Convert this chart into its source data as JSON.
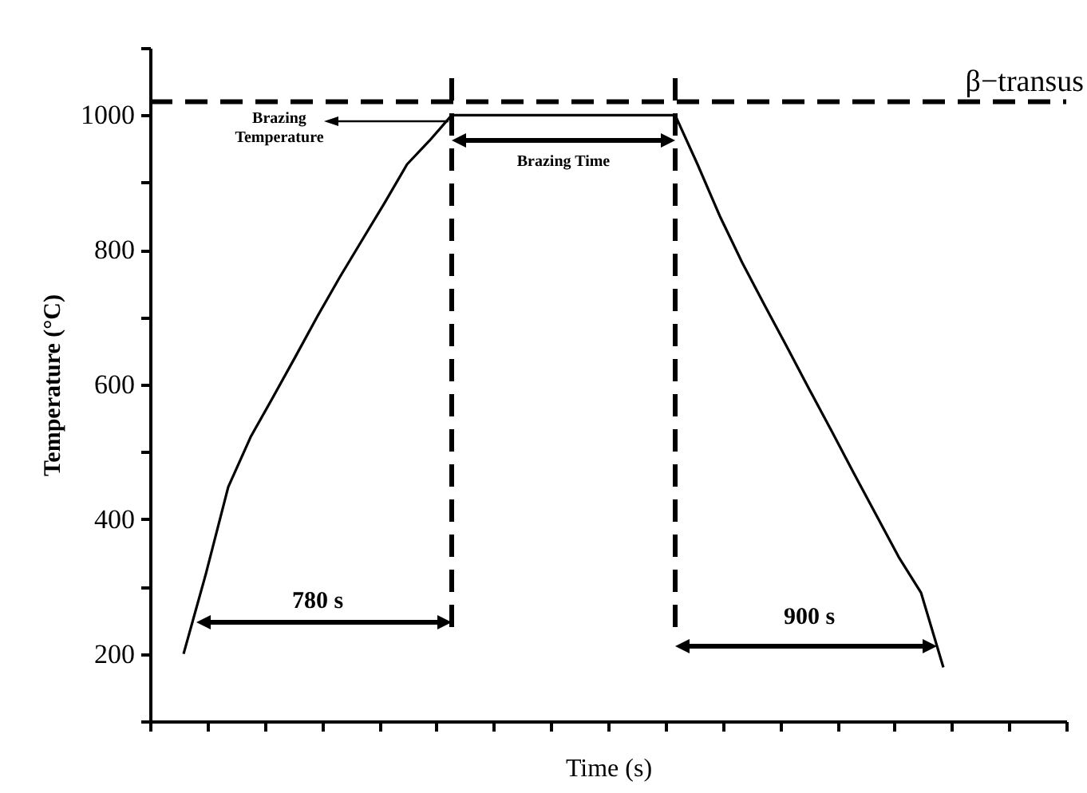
{
  "chart_data": {
    "type": "line",
    "xlabel": "Time (s)",
    "ylabel": "Temperature (°C)",
    "categories": [
      null,
      null,
      null,
      null,
      null,
      null,
      null,
      null,
      null,
      null,
      null,
      null,
      null,
      null,
      null,
      null,
      null,
      null,
      null,
      null,
      null,
      null,
      null,
      null,
      null,
      null,
      null,
      null,
      null,
      null,
      null,
      null,
      null,
      null,
      null,
      null,
      null,
      null,
      null,
      null,
      null
    ],
    "ylim": [
      100,
      1100
    ],
    "yticks": [
      {
        "value": 100,
        "label": null
      },
      200,
      {
        "value": 300,
        "label": null
      },
      400,
      {
        "value": 500,
        "label": null
      },
      600,
      {
        "value": 700,
        "label": null
      },
      800,
      {
        "value": 900,
        "label": null
      },
      1000,
      {
        "value": 1100,
        "label": null
      }
    ],
    "tick_labels": "y",
    "series": [
      {
        "color": "#000000",
        "values": [
          null,
          200,
          319,
          448,
          522,
          581,
          641,
          702,
          760,
          815,
          870,
          927,
          962,
          1000,
          1000,
          1000,
          1000,
          1000,
          1000,
          1000,
          1000,
          1000,
          1000,
          1000,
          927,
          850,
          781,
          718,
          656,
          593,
          531,
          468,
          406,
          344,
          291,
          180,
          null,
          null,
          null,
          null,
          null
        ]
      }
    ],
    "ref_lines": [
      {
        "axis": "y",
        "value": 1020,
        "label": "β−transus",
        "line_style": "dashed",
        "color": "#000000"
      }
    ],
    "annotations": [
      "780 s",
      "900 s",
      "Brazing Time",
      "Brazing Temperature"
    ]
  }
}
